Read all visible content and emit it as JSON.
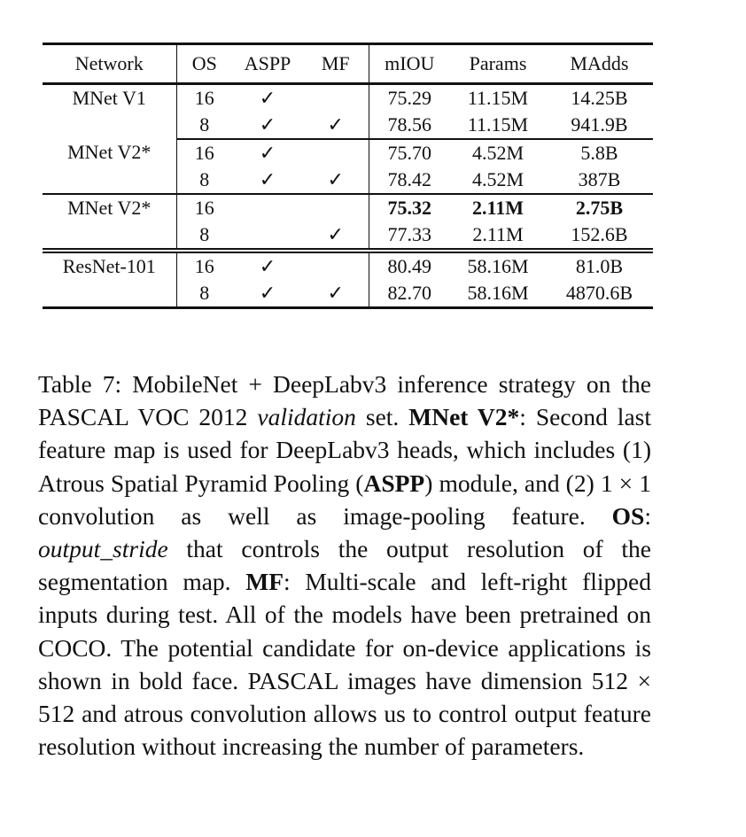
{
  "table": {
    "headers": [
      "Network",
      "OS",
      "ASPP",
      "MF",
      "mIOU",
      "Params",
      "MAdds"
    ],
    "groups": [
      {
        "network": "MNet V1",
        "rows": [
          {
            "os": "16",
            "aspp": true,
            "mf": false,
            "miou": "75.29",
            "params": "11.15M",
            "madds": "14.25B",
            "bold": false
          },
          {
            "os": "8",
            "aspp": true,
            "mf": true,
            "miou": "78.56",
            "params": "11.15M",
            "madds": "941.9B",
            "bold": false
          }
        ]
      },
      {
        "network": "MNet V2*",
        "rows": [
          {
            "os": "16",
            "aspp": true,
            "mf": false,
            "miou": "75.70",
            "params": "4.52M",
            "madds": "5.8B",
            "bold": false
          },
          {
            "os": "8",
            "aspp": true,
            "mf": true,
            "miou": "78.42",
            "params": "4.52M",
            "madds": "387B",
            "bold": false
          }
        ]
      },
      {
        "network": "MNet V2*",
        "rows": [
          {
            "os": "16",
            "aspp": false,
            "mf": false,
            "miou": "75.32",
            "params": "2.11M",
            "madds": "2.75B",
            "bold": true
          },
          {
            "os": "8",
            "aspp": false,
            "mf": true,
            "miou": "77.33",
            "params": "2.11M",
            "madds": "152.6B",
            "bold": false
          }
        ]
      },
      {
        "network": "ResNet-101",
        "rows": [
          {
            "os": "16",
            "aspp": true,
            "mf": false,
            "miou": "80.49",
            "params": "58.16M",
            "madds": "81.0B",
            "bold": false
          },
          {
            "os": "8",
            "aspp": true,
            "mf": true,
            "miou": "82.70",
            "params": "58.16M",
            "madds": "4870.6B",
            "bold": false
          }
        ]
      }
    ]
  },
  "caption": {
    "label": "Table 7:",
    "s1": " MobileNet + DeepLabv3 inference strategy on the PASCAL VOC 2012 ",
    "s1_em": "validation",
    "s2": " set. ",
    "t1": "MNet V2*",
    "s3": ": Second last feature map is used for DeepLabv3 heads, which includes (1) Atrous Spatial Pyramid Pooling (",
    "t2": "ASPP",
    "s4": ") module, and (2) 1 × 1 convolution as well as image-pooling feature. ",
    "t3": "OS",
    "s5": ": ",
    "s5_em": "output_stride",
    "s6": " that controls the output resolution of the segmentation map. ",
    "t4": "MF",
    "s7": ": Multi-scale and left-right flipped inputs during test. All of the models have been pretrained on COCO. The potential candidate for on-device applications is shown in bold face. PASCAL images have dimension 512 × 512 and atrous convolution allows us to control output feature resolution without increasing the number of parameters."
  }
}
